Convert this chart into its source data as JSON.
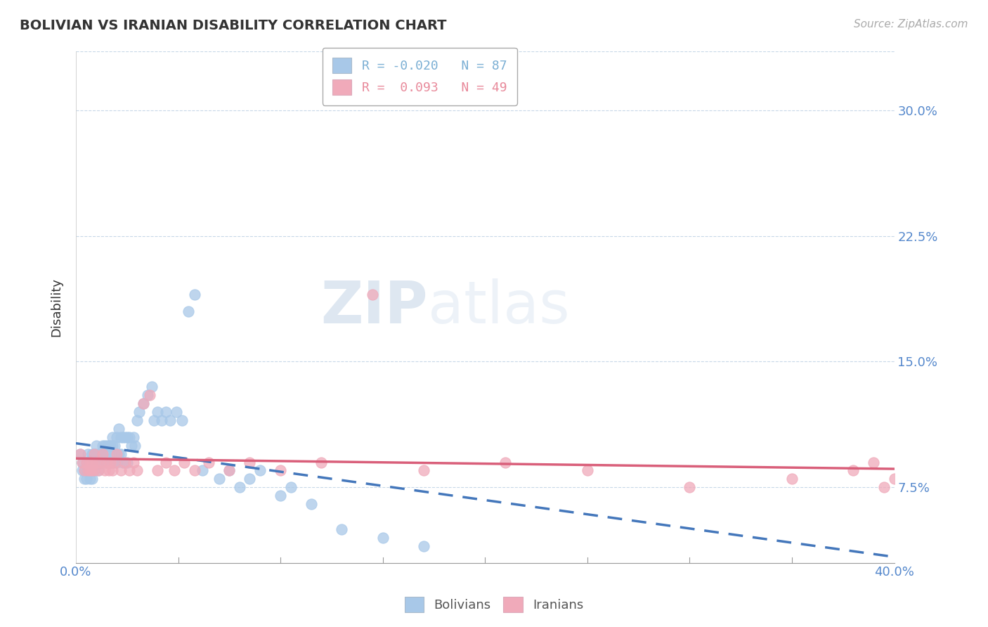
{
  "title": "BOLIVIAN VS IRANIAN DISABILITY CORRELATION CHART",
  "source": "Source: ZipAtlas.com",
  "ylabel": "Disability",
  "ytick_vals": [
    0.075,
    0.15,
    0.225,
    0.3
  ],
  "xlim": [
    0.0,
    0.4
  ],
  "ylim": [
    0.03,
    0.335
  ],
  "legend_entries": [
    {
      "label": "R = -0.020   N = 87",
      "color": "#7bafd4"
    },
    {
      "label": "R =  0.093   N = 49",
      "color": "#e8899a"
    }
  ],
  "bolivian_color": "#a8c8e8",
  "iranian_color": "#f0aaba",
  "bolivian_line_color": "#4477bb",
  "iranian_line_color": "#d95f7a",
  "watermark_zip": "ZIP",
  "watermark_atlas": "atlas",
  "bolivian_x": [
    0.002,
    0.003,
    0.003,
    0.004,
    0.004,
    0.005,
    0.005,
    0.005,
    0.006,
    0.006,
    0.006,
    0.007,
    0.007,
    0.007,
    0.007,
    0.008,
    0.008,
    0.008,
    0.008,
    0.009,
    0.009,
    0.009,
    0.01,
    0.01,
    0.01,
    0.011,
    0.011,
    0.011,
    0.012,
    0.012,
    0.013,
    0.013,
    0.013,
    0.014,
    0.014,
    0.015,
    0.015,
    0.016,
    0.016,
    0.017,
    0.017,
    0.018,
    0.018,
    0.018,
    0.019,
    0.019,
    0.02,
    0.02,
    0.021,
    0.021,
    0.022,
    0.022,
    0.023,
    0.023,
    0.024,
    0.025,
    0.025,
    0.026,
    0.027,
    0.028,
    0.029,
    0.03,
    0.031,
    0.033,
    0.035,
    0.037,
    0.038,
    0.04,
    0.042,
    0.044,
    0.046,
    0.049,
    0.052,
    0.055,
    0.058,
    0.062,
    0.07,
    0.075,
    0.08,
    0.085,
    0.09,
    0.1,
    0.105,
    0.115,
    0.13,
    0.15,
    0.17
  ],
  "bolivian_y": [
    0.095,
    0.09,
    0.085,
    0.085,
    0.08,
    0.09,
    0.085,
    0.08,
    0.095,
    0.09,
    0.085,
    0.09,
    0.085,
    0.085,
    0.08,
    0.095,
    0.09,
    0.085,
    0.08,
    0.095,
    0.09,
    0.085,
    0.1,
    0.095,
    0.09,
    0.095,
    0.09,
    0.085,
    0.095,
    0.09,
    0.1,
    0.095,
    0.09,
    0.1,
    0.095,
    0.1,
    0.09,
    0.1,
    0.095,
    0.1,
    0.09,
    0.105,
    0.1,
    0.09,
    0.1,
    0.095,
    0.105,
    0.09,
    0.11,
    0.095,
    0.105,
    0.095,
    0.105,
    0.09,
    0.105,
    0.105,
    0.09,
    0.105,
    0.1,
    0.105,
    0.1,
    0.115,
    0.12,
    0.125,
    0.13,
    0.135,
    0.115,
    0.12,
    0.115,
    0.12,
    0.115,
    0.12,
    0.115,
    0.18,
    0.19,
    0.085,
    0.08,
    0.085,
    0.075,
    0.08,
    0.085,
    0.07,
    0.075,
    0.065,
    0.05,
    0.045,
    0.04
  ],
  "iranian_x": [
    0.002,
    0.003,
    0.004,
    0.005,
    0.006,
    0.007,
    0.007,
    0.008,
    0.008,
    0.009,
    0.009,
    0.01,
    0.011,
    0.012,
    0.013,
    0.014,
    0.015,
    0.016,
    0.017,
    0.018,
    0.019,
    0.02,
    0.022,
    0.024,
    0.026,
    0.028,
    0.03,
    0.033,
    0.036,
    0.04,
    0.044,
    0.048,
    0.053,
    0.058,
    0.065,
    0.075,
    0.085,
    0.1,
    0.12,
    0.145,
    0.17,
    0.21,
    0.25,
    0.3,
    0.35,
    0.38,
    0.39,
    0.395,
    0.4
  ],
  "iranian_y": [
    0.095,
    0.09,
    0.085,
    0.09,
    0.085,
    0.09,
    0.085,
    0.09,
    0.085,
    0.095,
    0.085,
    0.09,
    0.085,
    0.09,
    0.095,
    0.085,
    0.09,
    0.085,
    0.09,
    0.085,
    0.09,
    0.095,
    0.085,
    0.09,
    0.085,
    0.09,
    0.085,
    0.125,
    0.13,
    0.085,
    0.09,
    0.085,
    0.09,
    0.085,
    0.09,
    0.085,
    0.09,
    0.085,
    0.09,
    0.19,
    0.085,
    0.09,
    0.085,
    0.075,
    0.08,
    0.085,
    0.09,
    0.075,
    0.08
  ]
}
